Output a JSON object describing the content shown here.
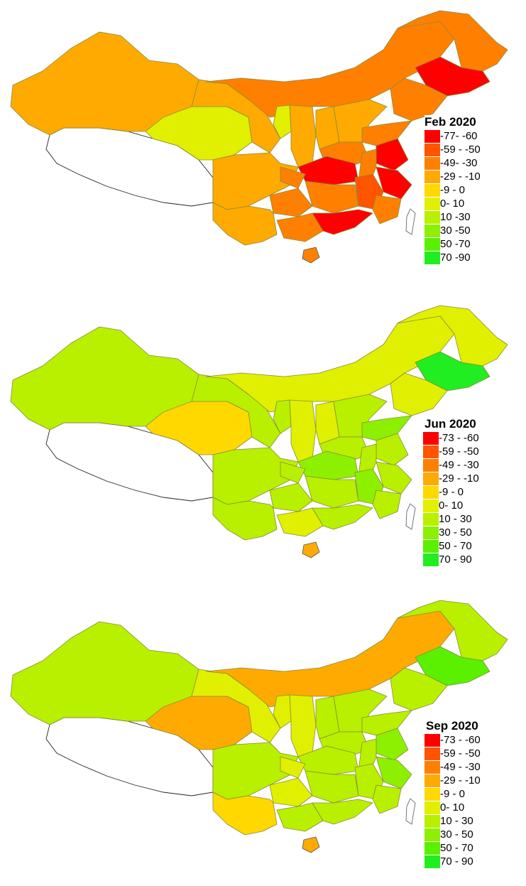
{
  "maps": [
    {
      "title": "Feb 2020",
      "legend": [
        {
          "label": "-77- -60",
          "color": "#ff0000"
        },
        {
          "label": "-59 - -50",
          "color": "#ff5400"
        },
        {
          "label": "-49- -30",
          "color": "#ff8000"
        },
        {
          "label": "-29 - -10",
          "color": "#ffaa00"
        },
        {
          "label": "-9 - 0",
          "color": "#ffd800"
        },
        {
          "label": "0- 10",
          "color": "#e0f000"
        },
        {
          "label": "10 -30",
          "color": "#b8f000"
        },
        {
          "label": "30 -50",
          "color": "#8cf000"
        },
        {
          "label": "50 -70",
          "color": "#5af000"
        },
        {
          "label": "70 -90",
          "color": "#20ee20"
        }
      ]
    },
    {
      "title": "Jun 2020",
      "legend": [
        {
          "label": "-73 - -60",
          "color": "#ff0000"
        },
        {
          "label": "-59 - -50",
          "color": "#ff5400"
        },
        {
          "label": "-49 - -30",
          "color": "#ff8000"
        },
        {
          "label": "-29 - -10",
          "color": "#ffaa00"
        },
        {
          "label": "-9 - 0",
          "color": "#ffd800"
        },
        {
          "label": "0- 10",
          "color": "#e0f000"
        },
        {
          "label": "10 - 30",
          "color": "#b8f000"
        },
        {
          "label": "30 - 50",
          "color": "#8cf000"
        },
        {
          "label": "50 - 70",
          "color": "#5af000"
        },
        {
          "label": "70 - 90",
          "color": "#20ee20"
        }
      ]
    },
    {
      "title": "Sep 2020",
      "legend": [
        {
          "label": "-73 - -60",
          "color": "#ff0000"
        },
        {
          "label": "-59 - -50",
          "color": "#ff5400"
        },
        {
          "label": "-49 - -30",
          "color": "#ff8000"
        },
        {
          "label": "-29 - -10",
          "color": "#ffaa00"
        },
        {
          "label": "-9 - 0",
          "color": "#ffd800"
        },
        {
          "label": "0- 10",
          "color": "#e0f000"
        },
        {
          "label": "10 - 30",
          "color": "#b8f000"
        },
        {
          "label": "30 - 50",
          "color": "#8cf000"
        },
        {
          "label": "50 - 70",
          "color": "#5af000"
        },
        {
          "label": "70 - 90",
          "color": "#20ee20"
        }
      ]
    }
  ]
}
